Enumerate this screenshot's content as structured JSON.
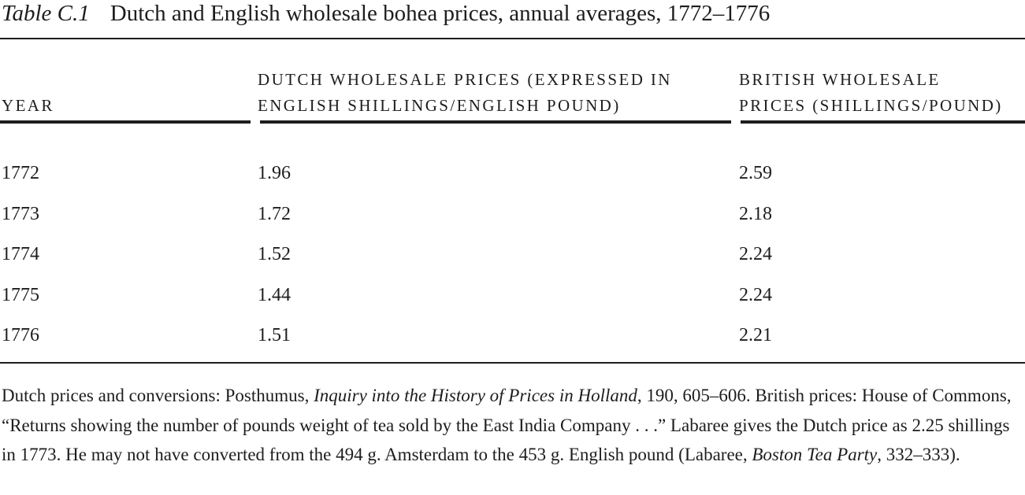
{
  "caption": {
    "label": "Table C.1",
    "title": "Dutch and English wholesale bohea prices, annual averages, 1772–1776"
  },
  "headers": {
    "year": "YEAR",
    "dutch": [
      "DUTCH WHOLESALE PRICES (EXPRESSED IN",
      "ENGLISH SHILLINGS/ENGLISH POUND)"
    ],
    "british": [
      "BRITISH WHOLESALE",
      "PRICES (SHILLINGS/POUND)"
    ]
  },
  "rows": [
    {
      "year": "1772",
      "dutch": "1.96",
      "british": "2.59"
    },
    {
      "year": "1773",
      "dutch": "1.72",
      "british": "2.18"
    },
    {
      "year": "1774",
      "dutch": "1.52",
      "british": "2.24"
    },
    {
      "year": "1775",
      "dutch": "1.44",
      "british": "2.24"
    },
    {
      "year": "1776",
      "dutch": "1.51",
      "british": "2.21"
    }
  ],
  "note": {
    "p1": "Dutch prices and conversions: Posthumus, ",
    "i1": "Inquiry into the History of Prices in Holland",
    "p2": ", 190, 605–606. British prices: House of Commons, “Returns showing the number of pounds weight of tea sold by the East India Company . . .” Labaree gives the Dutch price as 2.25 shillings in 1773. He may not have converted from the 494 g. Amsterdam to the 453 g. English pound (Labaree, ",
    "i2": "Boston Tea Party",
    "p3": ", 332–333)."
  }
}
